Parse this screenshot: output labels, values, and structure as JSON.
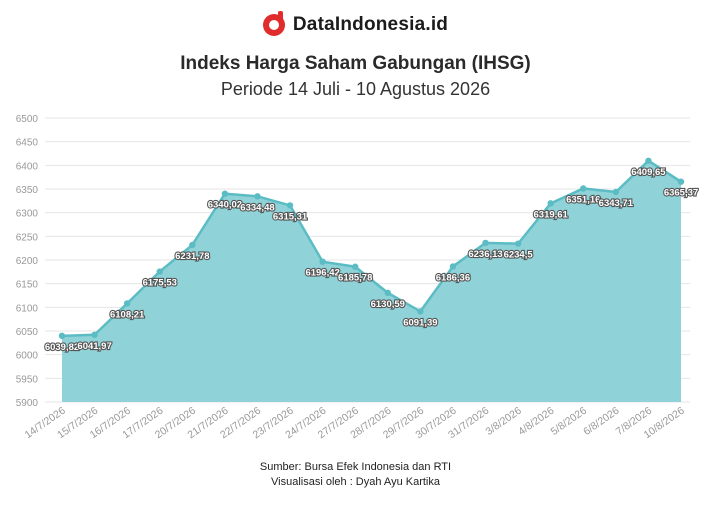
{
  "brand": {
    "name": "DataIndonesia.id"
  },
  "colors": {
    "line": "#5bbcc4",
    "area": "#8fd3d8",
    "grid": "#e6e6e6",
    "tick": "#999999",
    "label": "#ffffff",
    "label_stroke": "#555555"
  },
  "chart_data": {
    "type": "area",
    "title": "Indeks Harga Saham Gabungan (IHSG)",
    "subtitle": "Periode 14 Juli - 10 Agustus 2026",
    "categories": [
      "14/7/2026",
      "15/7/2026",
      "16/7/2026",
      "17/7/2026",
      "20/7/2026",
      "21/7/2026",
      "22/7/2026",
      "23/7/2026",
      "24/7/2026",
      "27/7/2026",
      "28/7/2026",
      "29/7/2026",
      "30/7/2026",
      "31/7/2026",
      "3/8/2026",
      "4/8/2026",
      "5/8/2026",
      "6/8/2026",
      "7/8/2026",
      "10/8/2026"
    ],
    "values": [
      6039.82,
      6041.97,
      6108.21,
      6175.53,
      6231.78,
      6340.02,
      6334.48,
      6315.31,
      6196.42,
      6185.78,
      6130.59,
      6091.39,
      6186.36,
      6236.13,
      6234.5,
      6319.61,
      6351.16,
      6343.71,
      6409.65,
      6365.37
    ],
    "data_labels": [
      "6039,82",
      "6041,97",
      "6108,21",
      "6175,53",
      "6231,78",
      "6340,02",
      "6334,48",
      "6315,31",
      "6196,42",
      "6185,78",
      "6130,59",
      "6091,39",
      "6186,36",
      "6236,13",
      "6234,5",
      "6319,61",
      "6351,16",
      "6343,71",
      "6409,65",
      "6365,37"
    ],
    "ylim": [
      5900,
      6500
    ],
    "yticks": [
      5900,
      5950,
      6000,
      6050,
      6100,
      6150,
      6200,
      6250,
      6300,
      6350,
      6400,
      6450,
      6500
    ],
    "xlabel": "",
    "ylabel": "",
    "grid": true,
    "legend": "none"
  },
  "footer": {
    "source": "Sumber: Bursa Efek Indonesia dan RTI",
    "credit": "Visualisasi oleh : Dyah Ayu Kartika"
  }
}
